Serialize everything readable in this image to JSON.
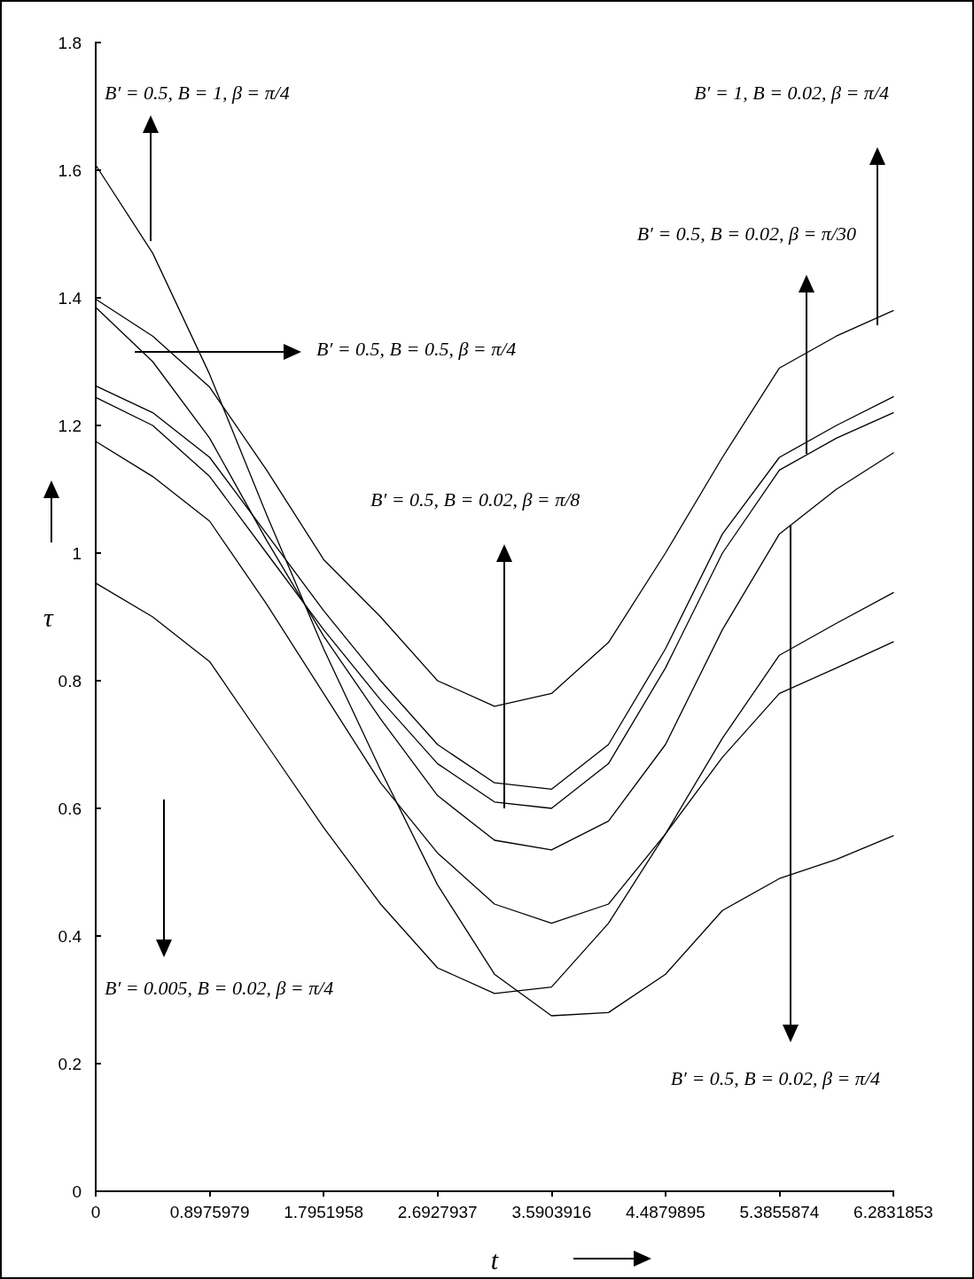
{
  "chart_data": {
    "type": "line",
    "xlabel": "t",
    "ylabel": "τ",
    "x": [
      0,
      0.448799,
      0.8975979,
      1.3463969,
      1.7951958,
      2.2439948,
      2.6927937,
      3.1415927,
      3.5903916,
      4.0391906,
      4.4879895,
      4.9367885,
      5.3855874,
      5.8343864,
      6.2831853
    ],
    "series": [
      {
        "color": "#000000",
        "values": [
          1.398,
          1.34,
          1.26,
          1.13,
          0.99,
          0.9,
          0.8,
          0.76,
          0.78,
          0.86,
          1.0,
          1.15,
          1.29,
          1.34,
          1.38
        ]
      },
      {
        "color": "#000000",
        "values": [
          1.385,
          1.3,
          1.18,
          1.02,
          0.87,
          0.74,
          0.62,
          0.55,
          0.535,
          0.58,
          0.7,
          0.88,
          1.03,
          1.1,
          1.157
        ]
      },
      {
        "color": "#000000",
        "values": [
          1.262,
          1.22,
          1.15,
          1.03,
          0.91,
          0.8,
          0.7,
          0.64,
          0.63,
          0.7,
          0.85,
          1.03,
          1.15,
          1.2,
          1.245
        ]
      },
      {
        "color": "#000000",
        "values": [
          1.244,
          1.2,
          1.12,
          1.0,
          0.88,
          0.77,
          0.67,
          0.61,
          0.6,
          0.67,
          0.82,
          1.0,
          1.13,
          1.18,
          1.22
        ]
      },
      {
        "color": "#000000",
        "values": [
          1.175,
          1.12,
          1.05,
          0.92,
          0.78,
          0.64,
          0.53,
          0.45,
          0.42,
          0.45,
          0.56,
          0.71,
          0.84,
          0.89,
          0.938
        ]
      },
      {
        "color": "#000000",
        "values": [
          0.953,
          0.9,
          0.83,
          0.7,
          0.57,
          0.45,
          0.35,
          0.31,
          0.32,
          0.42,
          0.56,
          0.68,
          0.78,
          0.82,
          0.861
        ]
      },
      {
        "color": "#000000",
        "values": [
          1.608,
          1.47,
          1.28,
          1.06,
          0.85,
          0.66,
          0.48,
          0.34,
          0.275,
          0.28,
          0.34,
          0.44,
          0.49,
          0.52,
          0.557
        ]
      }
    ],
    "xlim": [
      0,
      6.2831853
    ],
    "xticks": [
      0,
      0.8975979,
      1.7951958,
      2.6927937,
      3.5903916,
      4.4879895,
      5.3855874,
      6.2831853
    ],
    "ylim": [
      0,
      1.8
    ],
    "yticks": [
      0,
      0.2,
      0.4,
      0.6,
      0.8,
      1,
      1.2,
      1.4,
      1.6,
      1.8
    ],
    "annotations": [
      "B′ = 0.5, B = 1, β = π/4",
      "B′ = 1, B = 0.02, β = π/4",
      "B′ = 0.5, B = 0.02, β = π/30",
      "B′ = 0.5, B = 0.5, β = π/4",
      "B′ = 0.5, B = 0.02, β = π/8",
      "B′ = 0.005, B = 0.02, β = π/4",
      "B′ = 0.5, B = 0.02, β = π/4"
    ],
    "grid": false,
    "marker": "none",
    "line_style": "solid"
  }
}
